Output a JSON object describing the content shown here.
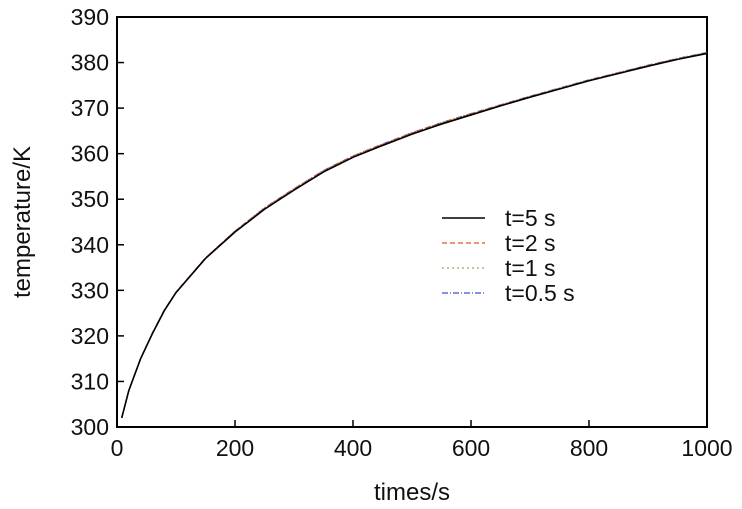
{
  "chart_data": {
    "type": "line",
    "title": "",
    "xlabel": "times/s",
    "ylabel": "temperature/K",
    "xlim": [
      0,
      1000
    ],
    "ylim": [
      300,
      390
    ],
    "x_ticks": [
      "0",
      "200",
      "400",
      "600",
      "800",
      "1000"
    ],
    "y_ticks": [
      "300",
      "310",
      "320",
      "330",
      "340",
      "350",
      "360",
      "370",
      "380",
      "390"
    ],
    "grid": false,
    "legend_position": "center-right",
    "series": [
      {
        "name": "t=5 s",
        "color": "#000000",
        "dash": "solid",
        "x": [
          8,
          20,
          40,
          60,
          80,
          100,
          150,
          200,
          250,
          300,
          350,
          400,
          450,
          500,
          550,
          600,
          650,
          700,
          750,
          800,
          850,
          900,
          950,
          1000
        ],
        "y": [
          302,
          308,
          315,
          320.5,
          325.5,
          329.5,
          337,
          342.8,
          347.8,
          352,
          356,
          359.2,
          361.8,
          364.3,
          366.5,
          368.5,
          370.5,
          372.4,
          374.2,
          376,
          377.6,
          379.2,
          380.7,
          382
        ]
      },
      {
        "name": "t=2 s",
        "color": "#e8502a",
        "dash": "5,3",
        "x": [
          8,
          20,
          40,
          60,
          80,
          100,
          150,
          200,
          250,
          300,
          350,
          400,
          450,
          500,
          550,
          600,
          650,
          700,
          750,
          800,
          850,
          900,
          950,
          1000
        ],
        "y": [
          302,
          308,
          315,
          320.6,
          325.6,
          329.6,
          337.1,
          343,
          348,
          352.2,
          356.2,
          359.4,
          362,
          364.5,
          366.7,
          368.7,
          370.6,
          372.5,
          374.3,
          376.1,
          377.7,
          379.3,
          380.8,
          382.1
        ]
      },
      {
        "name": "t=1 s",
        "color": "#a0a84a",
        "dash": "2,3",
        "x": [
          8,
          20,
          40,
          60,
          80,
          100,
          150,
          200,
          250,
          300,
          350,
          400,
          450,
          500,
          550,
          600,
          650,
          700,
          750,
          800,
          850,
          900,
          950,
          1000
        ],
        "y": [
          302,
          308,
          315,
          320.6,
          325.6,
          329.6,
          337.1,
          343,
          348.1,
          352.3,
          356.3,
          359.5,
          362.1,
          364.6,
          366.8,
          368.8,
          370.7,
          372.6,
          374.4,
          376.2,
          377.8,
          379.4,
          380.9,
          382.2
        ]
      },
      {
        "name": "t=0.5 s",
        "color": "#3a4fc8",
        "dash": "6,2,1,2",
        "x": [
          8,
          20,
          40,
          60,
          80,
          100,
          150,
          200,
          250,
          300,
          350,
          400,
          450,
          500,
          550,
          600,
          650,
          700,
          750,
          800,
          850,
          900,
          950,
          1000
        ],
        "y": [
          302,
          308,
          315,
          320.6,
          325.6,
          329.6,
          337.1,
          343,
          348.1,
          352.3,
          356.3,
          359.5,
          362.1,
          364.6,
          366.8,
          368.8,
          370.7,
          372.6,
          374.4,
          376.2,
          377.8,
          379.4,
          380.9,
          382.2
        ]
      }
    ]
  }
}
